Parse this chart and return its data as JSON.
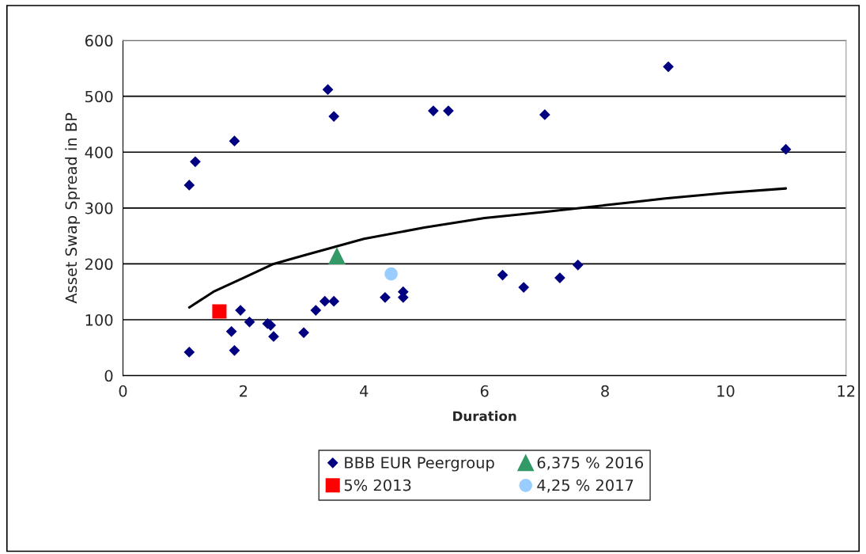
{
  "chart_data": {
    "type": "scatter",
    "xlabel": "Duration",
    "ylabel": "Asset Swap Spread in BP",
    "xlim": [
      0,
      12
    ],
    "xticks": [
      0,
      2,
      4,
      6,
      8,
      10,
      12
    ],
    "ylim": [
      0,
      600
    ],
    "yticks": [
      0,
      100,
      200,
      300,
      400,
      500,
      600
    ],
    "grid": "y",
    "legend": "bottom",
    "series": [
      {
        "name": "BBB EUR Peergroup",
        "color": "#000080",
        "marker": "diamond",
        "x": [
          1.1,
          1.1,
          1.2,
          1.85,
          1.8,
          1.85,
          1.95,
          2.1,
          2.4,
          2.45,
          2.5,
          3.0,
          3.2,
          3.35,
          3.4,
          3.5,
          3.5,
          4.35,
          4.65,
          4.65,
          5.15,
          5.4,
          6.3,
          6.65,
          7.0,
          7.25,
          7.55,
          9.05,
          11.0
        ],
        "values": [
          42,
          341,
          383,
          420,
          79,
          45,
          117,
          96,
          93,
          90,
          70,
          77,
          117,
          133,
          512,
          133,
          464,
          140,
          140,
          150,
          474,
          474,
          180,
          158,
          467,
          175,
          198,
          553,
          405
        ]
      },
      {
        "name": "5% 2013",
        "color": "#ff0000",
        "marker": "square",
        "x": [
          1.6
        ],
        "values": [
          115
        ]
      },
      {
        "name": "6,375 % 2016",
        "color": "#339966",
        "marker": "triangle",
        "x": [
          3.55
        ],
        "values": [
          214
        ]
      },
      {
        "name": "4,25 % 2017",
        "color": "#99ccff",
        "marker": "circle",
        "x": [
          4.45
        ],
        "values": [
          182
        ]
      },
      {
        "type": "line",
        "color": "#000000",
        "marker": "none",
        "x": [
          1.1,
          1.5,
          2,
          2.5,
          3,
          3.5,
          4,
          5,
          6,
          7,
          8,
          9,
          10,
          11
        ],
        "values": [
          122,
          150,
          175,
          200,
          215,
          230,
          245,
          265,
          282,
          293,
          305,
          317,
          327,
          335
        ]
      }
    ]
  }
}
